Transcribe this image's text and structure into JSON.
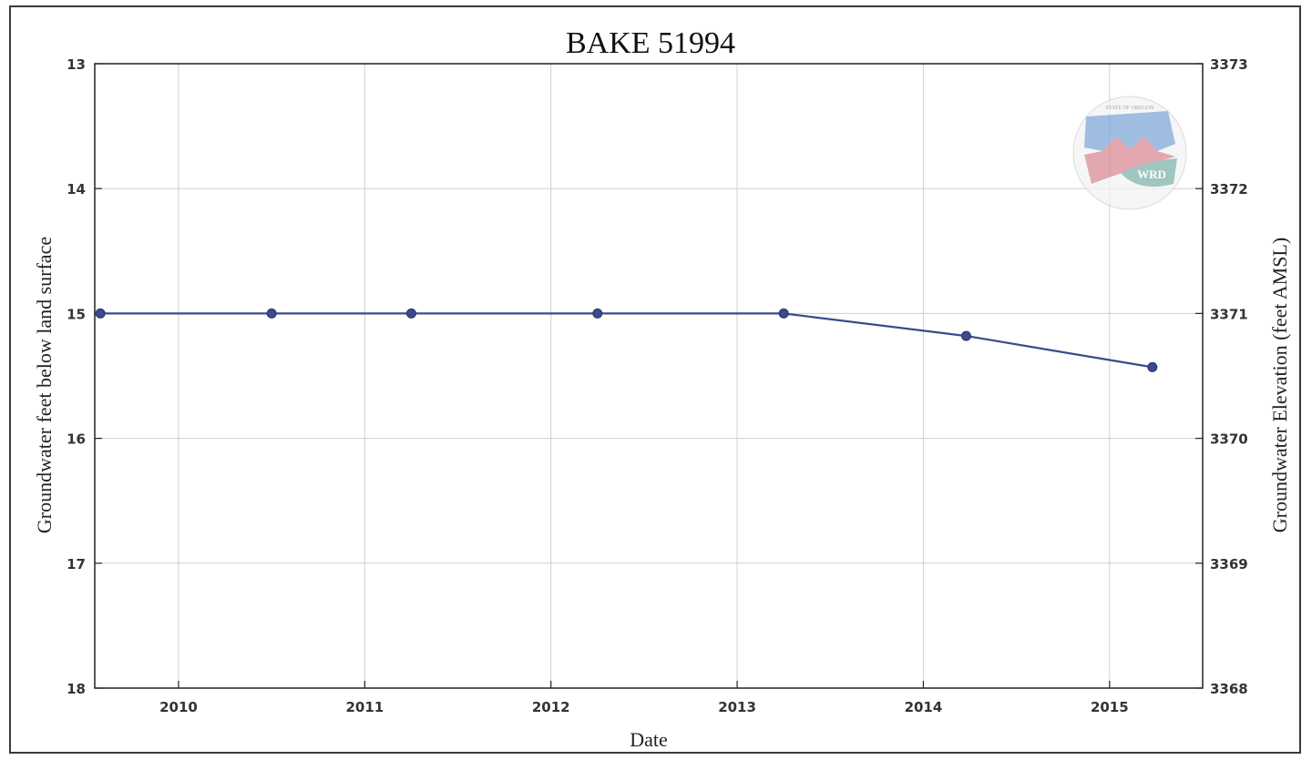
{
  "chart_data": {
    "type": "line",
    "title": "BAKE 51994",
    "xlabel": "Date",
    "ylabel": "Groundwater feet below land surface",
    "ylabel_right": "Groundwater Elevation (feet AMSL)",
    "xlim": [
      2009.55,
      2015.5
    ],
    "ylim": [
      18,
      13
    ],
    "ylim_right": [
      3368,
      3373
    ],
    "x_ticks": [
      {
        "value": 2010,
        "label": "2010"
      },
      {
        "value": 2011,
        "label": "2011"
      },
      {
        "value": 2012,
        "label": "2012"
      },
      {
        "value": 2013,
        "label": "2013"
      },
      {
        "value": 2014,
        "label": "2014"
      },
      {
        "value": 2015,
        "label": "2015"
      }
    ],
    "y_ticks": [
      {
        "value": 13,
        "label": "13"
      },
      {
        "value": 14,
        "label": "14"
      },
      {
        "value": 15,
        "label": "15"
      },
      {
        "value": 16,
        "label": "16"
      },
      {
        "value": 17,
        "label": "17"
      },
      {
        "value": 18,
        "label": "18"
      }
    ],
    "y_ticks_right": [
      {
        "value": 3373,
        "label": "3373"
      },
      {
        "value": 3372,
        "label": "3372"
      },
      {
        "value": 3371,
        "label": "3371"
      },
      {
        "value": 3370,
        "label": "3370"
      },
      {
        "value": 3369,
        "label": "3369"
      },
      {
        "value": 3368,
        "label": "3368"
      }
    ],
    "grid": true,
    "series": [
      {
        "x": [
          2009.58,
          2010.5,
          2011.25,
          2012.25,
          2013.25,
          2014.23,
          2015.23
        ],
        "y": [
          15.0,
          15.0,
          15.0,
          15.0,
          15.0,
          15.18,
          15.43
        ],
        "color": "#3b4a8a",
        "marker": "circle"
      }
    ]
  },
  "logo": {
    "name": "Oregon Water Resources Department seal",
    "top_text": "STATE OF OREGON",
    "ring_text": "WATER RESOURCES DEPARTMENT",
    "center_text": "WRD",
    "colors": {
      "blue": "#7fa6d8",
      "red": "#d98a95",
      "teal": "#7fb3ad"
    }
  }
}
